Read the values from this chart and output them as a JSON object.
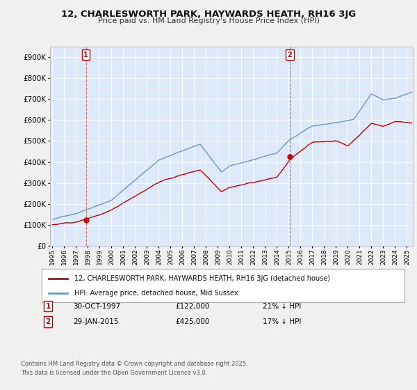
{
  "title": "12, CHARLESWORTH PARK, HAYWARDS HEATH, RH16 3JG",
  "subtitle": "Price paid vs. HM Land Registry's House Price Index (HPI)",
  "legend_label_red": "12, CHARLESWORTH PARK, HAYWARDS HEATH, RH16 3JG (detached house)",
  "legend_label_blue": "HPI: Average price, detached house, Mid Sussex",
  "annotation_1_date": "30-OCT-1997",
  "annotation_1_price": "£122,000",
  "annotation_1_hpi": "21% ↓ HPI",
  "annotation_2_date": "29-JAN-2015",
  "annotation_2_price": "£425,000",
  "annotation_2_hpi": "17% ↓ HPI",
  "footer": "Contains HM Land Registry data © Crown copyright and database right 2025.\nThis data is licensed under the Open Government Licence v3.0.",
  "sale1_year": 1997.83,
  "sale1_price": 122000,
  "sale2_year": 2015.08,
  "sale2_price": 425000,
  "red_color": "#cc0000",
  "blue_color": "#6699cc",
  "marker_box_color": "#cc0000",
  "background_color": "#f0f4ff",
  "plot_bg_color": "#dde8f8",
  "grid_color": "#ffffff",
  "ylim": [
    0,
    950000
  ],
  "xlim_start": 1994.8,
  "xlim_end": 2025.5
}
